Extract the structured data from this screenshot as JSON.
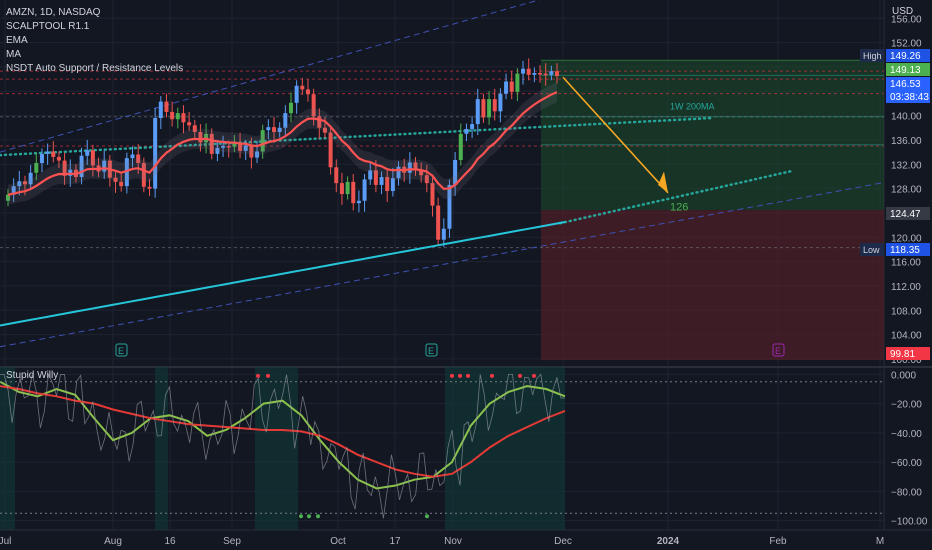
{
  "header": {
    "symbol_line": "AMZN, 1D, NASDAQ",
    "indicators": [
      "SCALPTOOL R1.1",
      "EMA",
      "MA",
      "NSDT Auto Support / Resistance Levels"
    ],
    "currency": "USD"
  },
  "oscillator": {
    "title": "Stupid Willy"
  },
  "chart_data": [
    {
      "type": "candlestick",
      "symbol": "AMZN",
      "interval": "1D",
      "exchange": "NASDAQ",
      "ylim": [
        99,
        159
      ],
      "y_ticks": [
        156.0,
        152.0,
        148.0,
        144.0,
        140.0,
        136.0,
        132.0,
        128.0,
        124.0,
        120.0,
        116.0,
        112.0,
        108.0,
        104.0,
        100.0
      ],
      "x_ticks": [
        "Jul",
        "Aug",
        "16",
        "Sep",
        "Oct",
        "17",
        "Nov",
        "Dec",
        "2024",
        "Feb",
        "M"
      ],
      "price_labels": [
        {
          "label": "High",
          "value": "149.26",
          "color": "#1e53e5"
        },
        {
          "value": "149.13",
          "color": "#4caf50"
        },
        {
          "value": "146.53",
          "value2": "03:38:43",
          "color": "#2962ff"
        },
        {
          "value": "124.47",
          "color": "#363a45"
        },
        {
          "label": "Low",
          "value": "118.35",
          "color": "#1e53e5"
        },
        {
          "value": "99.81",
          "color": "#f23645"
        }
      ],
      "annotations": [
        {
          "text": "1W 200MA"
        },
        {
          "text": "126"
        }
      ],
      "projection_target": 126,
      "reward_zone": [
        124.47,
        149.13
      ],
      "risk_zone": [
        99.81,
        124.47
      ],
      "candles_approx": {
        "dates_range": [
          "Jul",
          "Dec 1"
        ],
        "close": [
          127,
          128.4,
          129.2,
          128.7,
          130.6,
          132.2,
          133.7,
          134.1,
          133.2,
          132.6,
          130.1,
          131.1,
          129.9,
          133.4,
          134.3,
          131.8,
          130.8,
          132.6,
          129.8,
          129.1,
          128.4,
          133.0,
          133.6,
          132.2,
          128.3,
          128.0,
          139.6,
          142.3,
          140.6,
          139.4,
          140.4,
          138.9,
          138.4,
          137.3,
          135.6,
          137.0,
          133.7,
          134.7,
          135.0,
          134.9,
          135.5,
          134.2,
          135.1,
          133.1,
          134.1,
          137.6,
          138.1,
          137.3,
          138.0,
          140.4,
          142.1,
          144.9,
          144.3,
          143.5,
          139.9,
          138.0,
          137.2,
          131.5,
          128.9,
          127.1,
          129.1,
          125.6,
          126.0,
          129.5,
          131.0,
          128.6,
          129.9,
          127.6,
          129.7,
          131.6,
          130.6,
          132.3,
          131.0,
          130.2,
          128.9,
          125.2,
          119.6,
          121.4,
          128.6,
          132.7,
          137.0,
          137.8,
          138.6,
          142.7,
          139.7,
          142.7,
          140.7,
          143.6,
          145.6,
          143.9,
          146.9,
          147.7,
          146.7,
          147.0,
          146.9,
          146.7,
          147.3,
          146.5
        ],
        "ema_red_end": 140,
        "ma_cyan_end": 122.5
      }
    },
    {
      "type": "line",
      "title": "Stupid Willy",
      "ylim": [
        -103,
        3
      ],
      "y_ticks": [
        "0.000",
        "−20.00",
        "−40.00",
        "−60.00",
        "−80.00",
        "−100.00"
      ],
      "series": [
        {
          "name": "",
          "color": "#8bc34a",
          "values_approx": [
            -5,
            -12,
            -15,
            -10,
            -14,
            -30,
            -45,
            -40,
            -30,
            -28,
            -32,
            -42,
            -38,
            -30,
            -20,
            -18,
            -28,
            -45,
            -60,
            -72,
            -78,
            -76,
            -72,
            -70,
            -60,
            -35,
            -20,
            -12,
            -8,
            -10,
            -15
          ]
        },
        {
          "name": "",
          "color": "#e53935",
          "values_approx": [
            -8,
            -10,
            -13,
            -15,
            -18,
            -20,
            -24,
            -27,
            -30,
            -32,
            -34,
            -35,
            -36,
            -37,
            -38,
            -38,
            -39,
            -42,
            -48,
            -55,
            -60,
            -65,
            -68,
            -70,
            -68,
            -60,
            -50,
            -42,
            -36,
            -30,
            -25
          ]
        }
      ],
      "markers": [
        "−",
        "−",
        "−",
        "−"
      ]
    }
  ]
}
